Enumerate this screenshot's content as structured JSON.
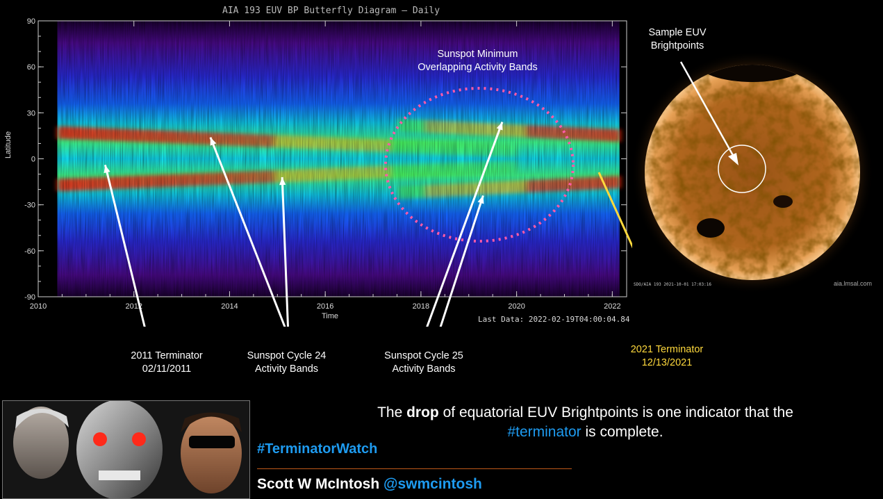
{
  "chart_data": {
    "type": "heatmap",
    "title": "AIA 193 EUV BP Butterfly Diagram — Daily",
    "xlabel": "Time",
    "ylabel": "Latitude",
    "xlim": [
      2010,
      2022.3
    ],
    "ylim": [
      -90,
      90
    ],
    "x_ticks": [
      "2010",
      "2012",
      "2014",
      "2016",
      "2018",
      "2020",
      "2022"
    ],
    "y_ticks": [
      "90",
      "60",
      "30",
      "0",
      "-30",
      "-60",
      "-90"
    ],
    "footer": "Last Data: 2022-02-19T04:00:04.84",
    "data_start": 2010.4,
    "data_end": 2022.15,
    "activity_bands": [
      {
        "name": "Sunspot Cycle 24",
        "hemisphere": "north",
        "latitude_start": 17,
        "latitude_end": 5,
        "time_start": 2010.4,
        "time_end": 2020.0
      },
      {
        "name": "Sunspot Cycle 24",
        "hemisphere": "south",
        "latitude_start": -17,
        "latitude_end": -5,
        "time_start": 2010.4,
        "time_end": 2020.0
      },
      {
        "name": "Sunspot Cycle 25",
        "hemisphere": "north",
        "latitude_start": 22,
        "latitude_end": 15,
        "time_start": 2017.5,
        "time_end": 2022.15
      },
      {
        "name": "Sunspot Cycle 25",
        "hemisphere": "south",
        "latitude_start": -22,
        "latitude_end": -15,
        "time_start": 2017.5,
        "time_end": 2022.15
      }
    ],
    "annotations": [
      {
        "text": "Sunspot Minimum\nOverlapping Activity Bands",
        "x": 2019.4,
        "y": 0
      }
    ]
  },
  "annotations": {
    "minimum_line1": "Sunspot Minimum",
    "minimum_line2": "Overlapping Activity Bands",
    "terminator_2011_line1": "2011 Terminator",
    "terminator_2011_line2": "02/11/2011",
    "cycle24_line1": "Sunspot Cycle 24",
    "cycle24_line2": "Activity Bands",
    "cycle25_line1": "Sunspot Cycle 25",
    "cycle25_line2": "Activity Bands",
    "terminator_2021_line1": "2021 Terminator",
    "terminator_2021_line2": "12/13/2021",
    "sample_line1": "Sample EUV",
    "sample_line2": "Brightpoints"
  },
  "sun_image": {
    "caption": "SDO/AIA 193 2021-10-01 17:03:16",
    "credit": "aia.lmsal.com"
  },
  "message": {
    "part1": "The ",
    "bold": "drop",
    "part2": " of equatorial EUV Brightpoints is one indicator that the",
    "hashtag": "#terminator",
    "part3": " is complete."
  },
  "footer": {
    "hashtag": "#TerminatorWatch",
    "author": "Scott W McIntosh",
    "handle": "@swmcintosh"
  },
  "colors": {
    "accent_blue": "#1e9bf0",
    "arrow": "#ffffff",
    "terminator_2021": "#ffd93d",
    "minimum_circle": "#ff5aa8",
    "sun": "#c67a2a",
    "divider": "#c05a1a"
  }
}
